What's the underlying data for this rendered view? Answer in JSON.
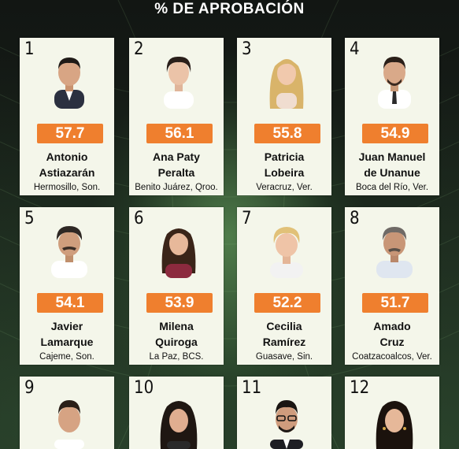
{
  "header": {
    "title": "% DE APROBACIÓN"
  },
  "colors": {
    "accent": "#ef7f2e",
    "card": "#f4f6ea",
    "background": "#1b221c"
  },
  "cards": [
    {
      "rank": "1",
      "score": "57.7",
      "name_line1": "Antonio",
      "name_line2": "Astiazarán",
      "city": "Hermosillo, Son."
    },
    {
      "rank": "2",
      "score": "56.1",
      "name_line1": "Ana Paty",
      "name_line2": "Peralta",
      "city": "Benito Juárez, Qroo."
    },
    {
      "rank": "3",
      "score": "55.8",
      "name_line1": "Patricia",
      "name_line2": "Lobeira",
      "city": "Veracruz, Ver."
    },
    {
      "rank": "4",
      "score": "54.9",
      "name_line1": "Juan Manuel",
      "name_line2": "de Unanue",
      "city": "Boca del Río, Ver."
    },
    {
      "rank": "5",
      "score": "54.1",
      "name_line1": "Javier",
      "name_line2": "Lamarque",
      "city": "Cajeme, Son."
    },
    {
      "rank": "6",
      "score": "53.9",
      "name_line1": "Milena",
      "name_line2": "Quiroga",
      "city": "La Paz, BCS."
    },
    {
      "rank": "7",
      "score": "52.2",
      "name_line1": "Cecilia",
      "name_line2": "Ramírez",
      "city": "Guasave, Sin."
    },
    {
      "rank": "8",
      "score": "51.7",
      "name_line1": "Amado",
      "name_line2": "Cruz",
      "city": "Coatzacoalcos, Ver."
    },
    {
      "rank": "9"
    },
    {
      "rank": "10"
    },
    {
      "rank": "11"
    },
    {
      "rank": "12"
    }
  ]
}
